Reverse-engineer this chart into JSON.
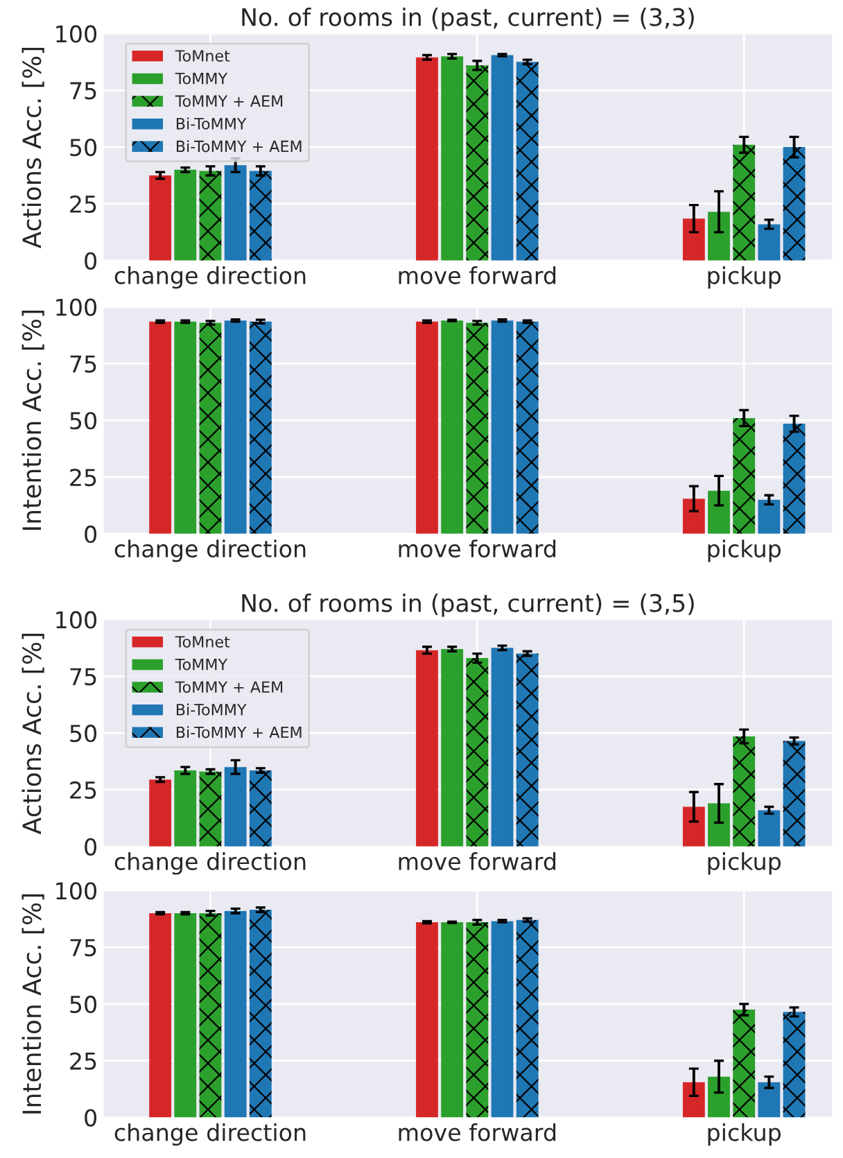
{
  "chart_data": [
    {
      "type": "bar",
      "title": "No. of rooms in (past, current) = (3,3)",
      "ylabel": "Actions Acc. [%]",
      "categories": [
        "change direction",
        "move forward",
        "pickup"
      ],
      "ylim": [
        0,
        100
      ],
      "yticks": [
        0,
        25,
        50,
        75,
        100
      ],
      "grid": true,
      "legend": "top left",
      "series": [
        {
          "name": "ToMnet",
          "color": "#d62728",
          "values": [
            37.5,
            89.5,
            18.5
          ],
          "errors": [
            1.5,
            1,
            6
          ]
        },
        {
          "name": "ToMMY",
          "color": "#2ca02c",
          "values": [
            40,
            90,
            21.5
          ],
          "errors": [
            1,
            1,
            9
          ]
        },
        {
          "name": "ToMMY + AEM",
          "color": "#2ca02c",
          "values": [
            39.5,
            86,
            51
          ],
          "errors": [
            2,
            2,
            3.5
          ]
        },
        {
          "name": "Bi-ToMMY",
          "color": "#1f77b4",
          "values": [
            42,
            90.5,
            16
          ],
          "errors": [
            3,
            0.5,
            2
          ]
        },
        {
          "name": "Bi-ToMMY + AEM",
          "color": "#1f77b4",
          "values": [
            39.5,
            87.5,
            50
          ],
          "errors": [
            2,
            1,
            4.5
          ]
        }
      ]
    },
    {
      "type": "bar",
      "ylabel": "Intention Acc. [%]",
      "categories": [
        "change direction",
        "move forward",
        "pickup"
      ],
      "ylim": [
        0,
        100
      ],
      "yticks": [
        0,
        25,
        50,
        75,
        100
      ],
      "grid": true,
      "series": [
        {
          "color": "#d62728",
          "values": [
            93.5,
            93.5,
            15.5
          ],
          "errors": [
            0.5,
            0.5,
            5.5
          ]
        },
        {
          "color": "#2ca02c",
          "values": [
            93.5,
            94,
            19
          ],
          "errors": [
            0.5,
            0.3,
            6.5
          ]
        },
        {
          "color": "#2ca02c",
          "values": [
            93,
            93,
            51
          ],
          "errors": [
            0.8,
            0.8,
            3.5
          ]
        },
        {
          "color": "#1f77b4",
          "values": [
            94,
            94,
            15
          ],
          "errors": [
            0.5,
            0.5,
            2
          ]
        },
        {
          "color": "#1f77b4",
          "values": [
            93.5,
            93.5,
            48.5
          ],
          "errors": [
            0.8,
            0.5,
            3.5
          ]
        }
      ]
    },
    {
      "type": "bar",
      "title": "No. of rooms in (past, current) = (3,5)",
      "ylabel": "Actions Acc. [%]",
      "categories": [
        "change direction",
        "move forward",
        "pickup"
      ],
      "ylim": [
        0,
        100
      ],
      "yticks": [
        0,
        25,
        50,
        75,
        100
      ],
      "grid": true,
      "legend": "top left",
      "series": [
        {
          "name": "ToMnet",
          "color": "#d62728",
          "values": [
            29.5,
            86.5,
            17.5
          ],
          "errors": [
            1,
            1.5,
            6.5
          ]
        },
        {
          "name": "ToMMY",
          "color": "#2ca02c",
          "values": [
            33.5,
            87,
            19
          ],
          "errors": [
            1.5,
            1,
            8.5
          ]
        },
        {
          "name": "ToMMY + AEM",
          "color": "#2ca02c",
          "values": [
            33,
            83,
            48.5
          ],
          "errors": [
            1,
            2,
            3
          ]
        },
        {
          "name": "Bi-ToMMY",
          "color": "#1f77b4",
          "values": [
            35,
            87.5,
            16
          ],
          "errors": [
            3,
            1,
            1.5
          ]
        },
        {
          "name": "Bi-ToMMY + AEM",
          "color": "#1f77b4",
          "values": [
            33.5,
            85,
            46.5
          ],
          "errors": [
            1,
            1,
            1.5
          ]
        }
      ]
    },
    {
      "type": "bar",
      "ylabel": "Intention Acc. [%]",
      "categories": [
        "change direction",
        "move forward",
        "pickup"
      ],
      "ylim": [
        0,
        100
      ],
      "yticks": [
        0,
        25,
        50,
        75,
        100
      ],
      "grid": true,
      "series": [
        {
          "color": "#d62728",
          "values": [
            90,
            86,
            15.5
          ],
          "errors": [
            0.5,
            0.5,
            6
          ]
        },
        {
          "color": "#2ca02c",
          "values": [
            90,
            86,
            18
          ],
          "errors": [
            0.5,
            0.3,
            7
          ]
        },
        {
          "color": "#2ca02c",
          "values": [
            90,
            86,
            47.5
          ],
          "errors": [
            1,
            1,
            2.5
          ]
        },
        {
          "color": "#1f77b4",
          "values": [
            91,
            86.5,
            15.5
          ],
          "errors": [
            1,
            0.5,
            2.5
          ]
        },
        {
          "color": "#1f77b4",
          "values": [
            91.5,
            87,
            46.5
          ],
          "errors": [
            1,
            0.7,
            2
          ]
        }
      ]
    }
  ]
}
